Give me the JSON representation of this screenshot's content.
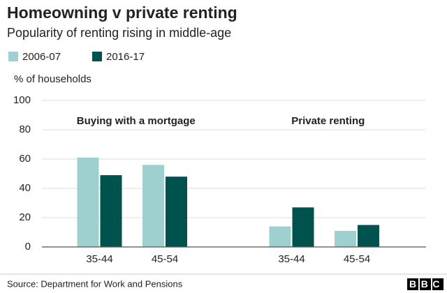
{
  "chart_data": {
    "type": "grouped_bar",
    "title": "Homeowning v private renting",
    "subtitle": "Popularity of renting rising in middle-age",
    "y_label": "% of households",
    "groups": [
      {
        "name": "Buying with a mortgage",
        "categories": [
          "35-44",
          "45-54"
        ]
      },
      {
        "name": "Private renting",
        "categories": [
          "35-44",
          "45-54"
        ]
      }
    ],
    "series": [
      {
        "name": "2006-07",
        "color": "#9dd0ce",
        "values": [
          61,
          56,
          14,
          11
        ]
      },
      {
        "name": "2016-17",
        "color": "#00524f",
        "values": [
          49,
          48,
          27,
          15
        ]
      }
    ],
    "ylim": [
      0,
      100
    ],
    "yticks": [
      0,
      20,
      40,
      60,
      80,
      100
    ],
    "grid": true,
    "source": "Source: Department for Work and Pensions",
    "logo": "BBC"
  }
}
